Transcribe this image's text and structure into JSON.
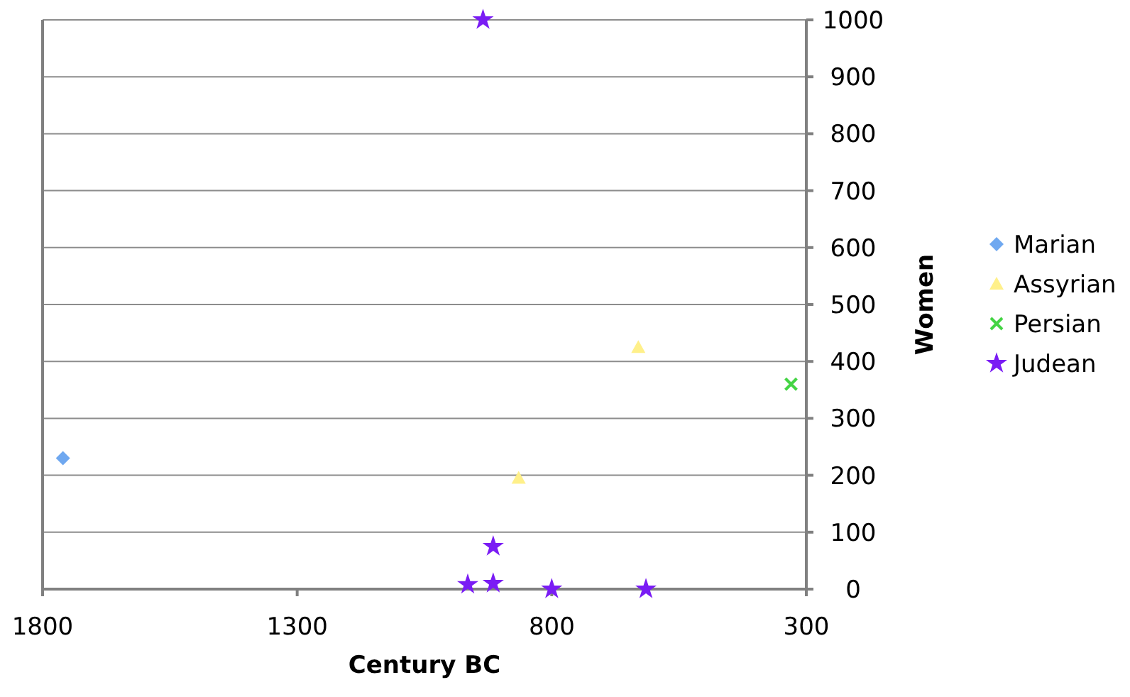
{
  "chart_data": {
    "type": "scatter",
    "xlabel": "Century BC",
    "ylabel": "Women",
    "xlim": [
      1800,
      300
    ],
    "xticks": [
      1800,
      1300,
      800,
      300
    ],
    "ylim": [
      0,
      1000
    ],
    "yticks": [
      0,
      100,
      200,
      300,
      400,
      500,
      600,
      700,
      800,
      900,
      1000
    ],
    "grid": "y",
    "legend": "right",
    "series": [
      {
        "name": "Marian",
        "color": "#6fa8f0",
        "marker": "diamond",
        "x": [
          1760
        ],
        "values": [
          230
        ]
      },
      {
        "name": "Assyrian",
        "color": "#fff08a",
        "marker": "triangle",
        "x": [
          630,
          865
        ],
        "values": [
          425,
          195
        ]
      },
      {
        "name": "Persian",
        "color": "#44d444",
        "marker": "cross",
        "x": [
          330
        ],
        "values": [
          360
        ]
      },
      {
        "name": "Judean",
        "color": "#7a1cf4",
        "marker": "star",
        "x": [
          935,
          915,
          965,
          915,
          800,
          615
        ],
        "values": [
          1000,
          75,
          8,
          10,
          0,
          0
        ]
      }
    ]
  }
}
